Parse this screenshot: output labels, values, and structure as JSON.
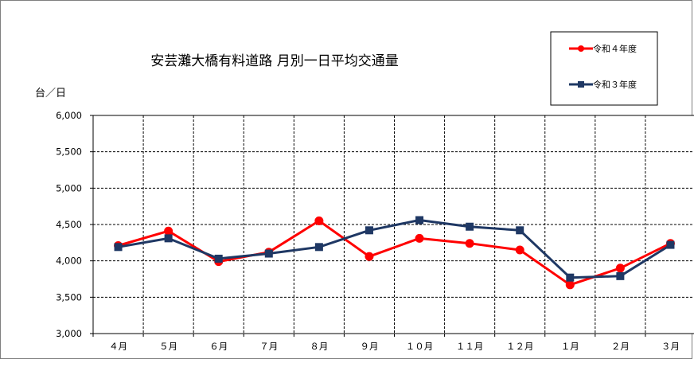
{
  "chart_data": {
    "type": "line",
    "title": "安芸灘大橋有料道路 月別一日平均交通量",
    "ylabel": "台／日",
    "xlabel": "",
    "categories": [
      "４月",
      "５月",
      "６月",
      "７月",
      "８月",
      "９月",
      "１０月",
      "１１月",
      "１２月",
      "１月",
      "２月",
      "３月"
    ],
    "ylim": [
      3000,
      6000
    ],
    "yticks": [
      3000,
      3500,
      4000,
      4500,
      5000,
      5500,
      6000
    ],
    "ytick_labels": [
      "3,000",
      "3,500",
      "4,000",
      "4,500",
      "5,000",
      "5,500",
      "6,000"
    ],
    "grid": true,
    "legend_position": "top-right",
    "series": [
      {
        "name": "令和４年度",
        "color": "#ff0000",
        "marker": "circle",
        "values": [
          4210,
          4410,
          3990,
          4120,
          4550,
          4060,
          4310,
          4240,
          4150,
          3670,
          3900,
          4240
        ]
      },
      {
        "name": "令和３年度",
        "color": "#1f3864",
        "marker": "square",
        "values": [
          4190,
          4310,
          4030,
          4100,
          4190,
          4420,
          4560,
          4470,
          4420,
          3770,
          3790,
          4220
        ]
      }
    ]
  }
}
